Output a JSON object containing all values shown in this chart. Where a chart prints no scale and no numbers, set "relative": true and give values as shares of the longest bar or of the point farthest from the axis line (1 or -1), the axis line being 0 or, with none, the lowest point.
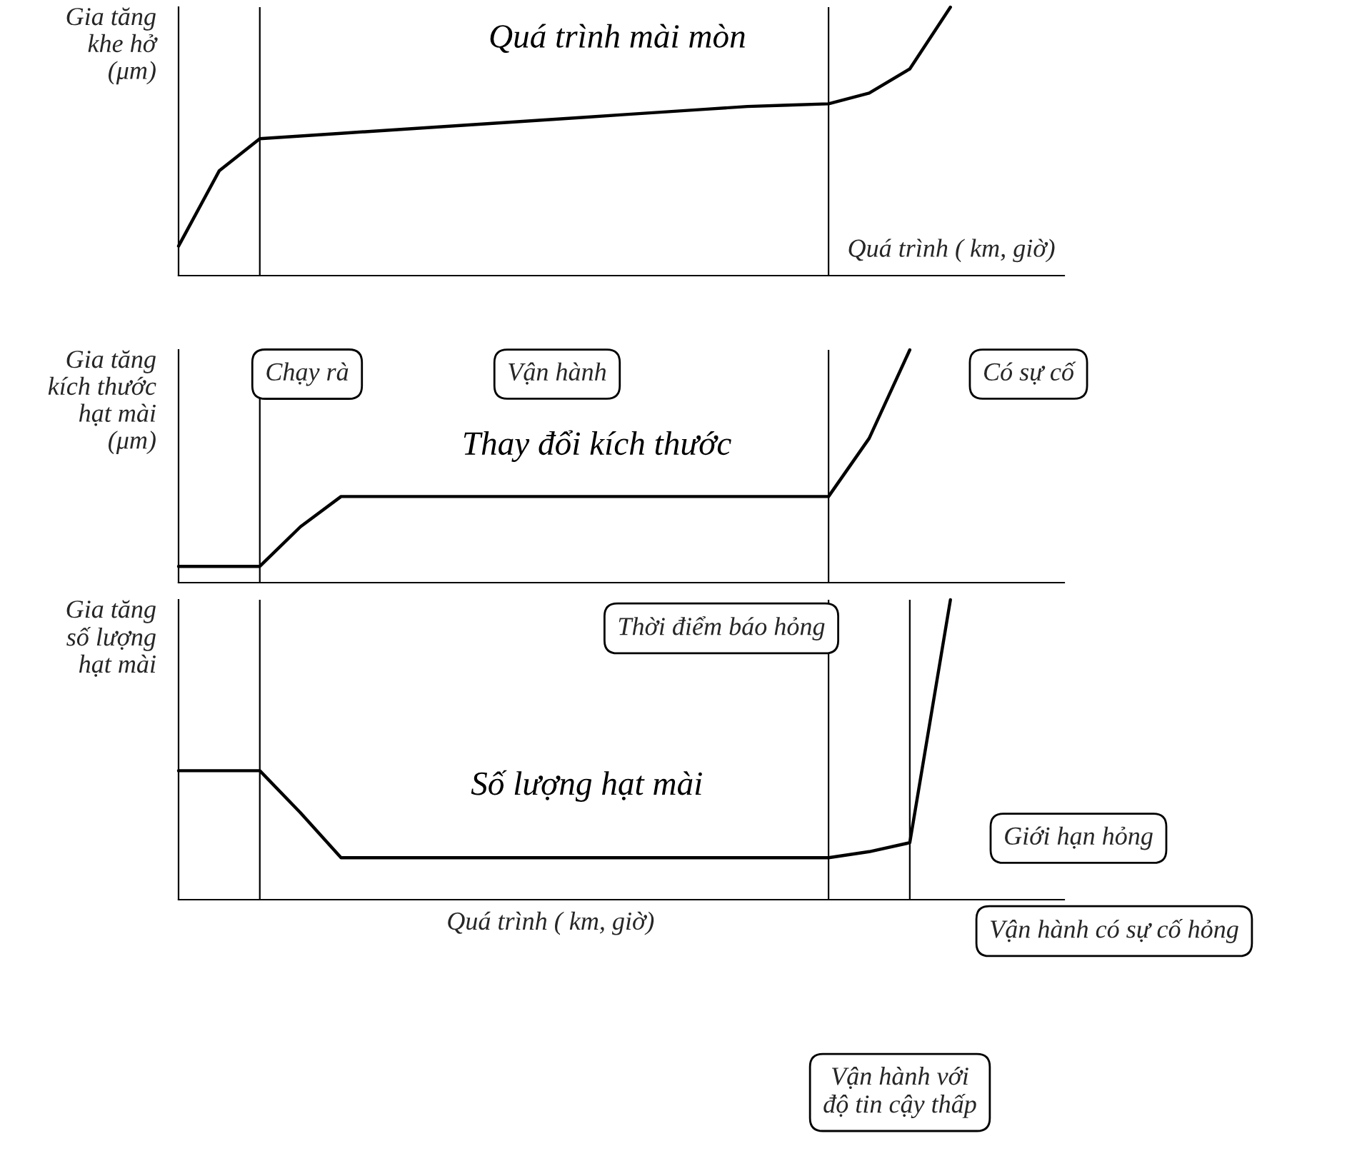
{
  "chart_data": [
    {
      "type": "line",
      "relative": true,
      "ylabel": "Gia tăng\nkhe hở\n(μm)",
      "xlabel": "Quá trình ( km, giờ)",
      "categories": [
        null,
        null,
        null,
        null,
        null,
        null,
        null,
        null,
        null,
        null,
        null,
        null,
        null,
        null,
        null,
        null,
        null,
        null,
        null,
        null,
        null,
        null
      ],
      "series": [
        {
          "name": "Quá trình mài mòn",
          "color": "#000000",
          "values": [
            0.11,
            0.39,
            0.51,
            0.52,
            0.53,
            0.54,
            0.55,
            0.56,
            0.57,
            0.58,
            0.59,
            0.6,
            0.61,
            0.62,
            0.63,
            0.635,
            0.64,
            0.68,
            0.77,
            1.0,
            null,
            null
          ]
        }
      ],
      "marker": "none",
      "line_style": "solid",
      "grid": "x"
    },
    {
      "type": "line",
      "relative": true,
      "ylabel": "Gia tăng\nkích thước\nhạt mài\n(μm)",
      "categories": [
        null,
        null,
        null,
        null,
        null,
        null,
        null,
        null,
        null,
        null,
        null,
        null,
        null,
        null,
        null,
        null,
        null,
        null,
        null,
        null,
        null,
        null
      ],
      "series": [
        {
          "name": "Thay đổi kích thước",
          "color": "#000000",
          "values": [
            0.07,
            0.07,
            0.07,
            0.24,
            0.37,
            0.37,
            0.37,
            0.37,
            0.37,
            0.37,
            0.37,
            0.37,
            0.37,
            0.37,
            0.37,
            0.37,
            0.37,
            0.62,
            1.0,
            null,
            null,
            null
          ]
        }
      ],
      "annotations": [
        "Chạy rà",
        "Vận hành",
        "Có sự cố",
        "Thời điểm báo hỏng"
      ],
      "marker": "none",
      "line_style": "solid",
      "grid": "x"
    },
    {
      "type": "line",
      "relative": true,
      "ylabel": "Gia tăng\nsố lượng\nhạt mài",
      "xlabel": "Quá trình ( km, giờ)",
      "categories": [
        null,
        null,
        null,
        null,
        null,
        null,
        null,
        null,
        null,
        null,
        null,
        null,
        null,
        null,
        null,
        null,
        null,
        null,
        null,
        null,
        null,
        null
      ],
      "series": [
        {
          "name": "Số lượng hạt mài",
          "color": "#000000",
          "values": [
            0.43,
            0.43,
            0.43,
            0.29,
            0.14,
            0.14,
            0.14,
            0.14,
            0.14,
            0.14,
            0.14,
            0.14,
            0.14,
            0.14,
            0.14,
            0.14,
            0.14,
            0.16,
            0.19,
            1.0,
            null,
            null
          ]
        }
      ],
      "annotations": [
        "Giới hạn hỏng",
        "Vận hành có sự cố hỏng",
        "Vận hành với\nđộ tin cậy thấp"
      ],
      "marker": "none",
      "line_style": "solid",
      "grid": "x"
    }
  ]
}
